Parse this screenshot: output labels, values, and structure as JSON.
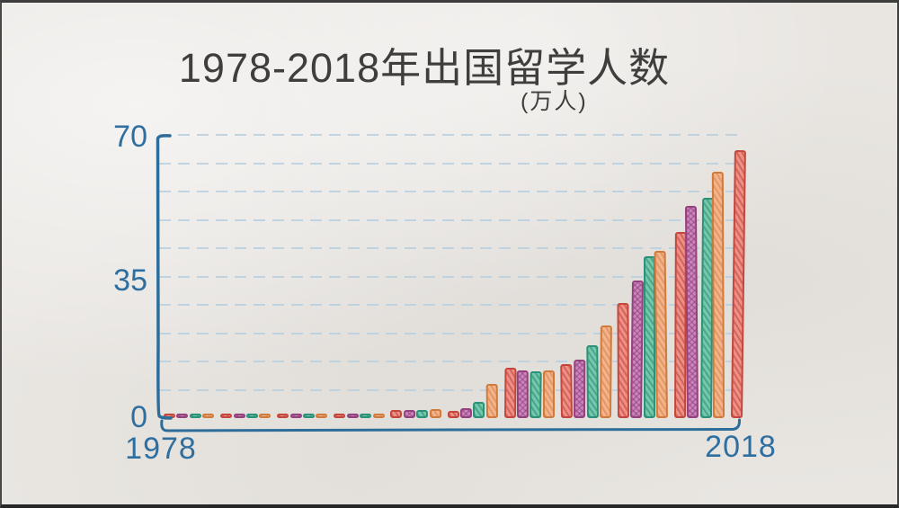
{
  "page": {
    "title": "1978-2018年出国留学人数",
    "subtitle": "(万人)"
  },
  "axes": {
    "y_ticks": [
      "70",
      "35",
      "0"
    ],
    "x_start_label": "1978",
    "x_end_label": "2018"
  },
  "colors": {
    "axis_blue": "#2e6d9a",
    "label_blue": "#2f6fa0",
    "gridline_blue": "#b7cfe0",
    "title_ink": "#3f3e3c",
    "paper": "#e9e6e2",
    "bar_red": "#c4473e",
    "bar_purple": "#94427e",
    "bar_teal": "#2b9179",
    "bar_orange": "#d07a3b"
  },
  "chart_data": {
    "type": "bar",
    "title": "1978-2018年出国留学人数",
    "unit_label": "(万人)",
    "xlabel": "",
    "ylabel": "万人",
    "ylim": [
      0,
      70
    ],
    "y_tick_values": [
      0,
      35,
      70
    ],
    "gridline_values": [
      7,
      14,
      21,
      28,
      35,
      42,
      49,
      56,
      63,
      70
    ],
    "grid": true,
    "legend": false,
    "x_axis_range_labels": [
      "1978",
      "2018"
    ],
    "group_size": 4,
    "color_cycle": [
      "red",
      "purple",
      "teal",
      "orange"
    ],
    "categories": [
      1978,
      1979,
      1980,
      1981,
      1982,
      1983,
      1984,
      1985,
      1986,
      1987,
      1988,
      1989,
      1990,
      1991,
      1992,
      1993,
      1994,
      1995,
      1996,
      1997,
      1998,
      1999,
      2000,
      2001,
      2002,
      2003,
      2004,
      2005,
      2006,
      2007,
      2008,
      2009,
      2010,
      2011,
      2012,
      2013,
      2014,
      2015,
      2016,
      2017,
      2018
    ],
    "values": [
      0.09,
      0.17,
      0.21,
      0.28,
      0.21,
      0.26,
      0.31,
      0.49,
      0.45,
      0.48,
      0.36,
      0.32,
      0.29,
      0.29,
      0.65,
      1.07,
      1.91,
      2.04,
      2.08,
      2.23,
      1.75,
      2.39,
      3.9,
      8.39,
      12.5,
      11.73,
      11.47,
      11.85,
      13.4,
      14.4,
      17.98,
      22.93,
      28.47,
      33.97,
      39.96,
      41.39,
      45.98,
      52.37,
      54.45,
      60.84,
      66.21
    ]
  }
}
